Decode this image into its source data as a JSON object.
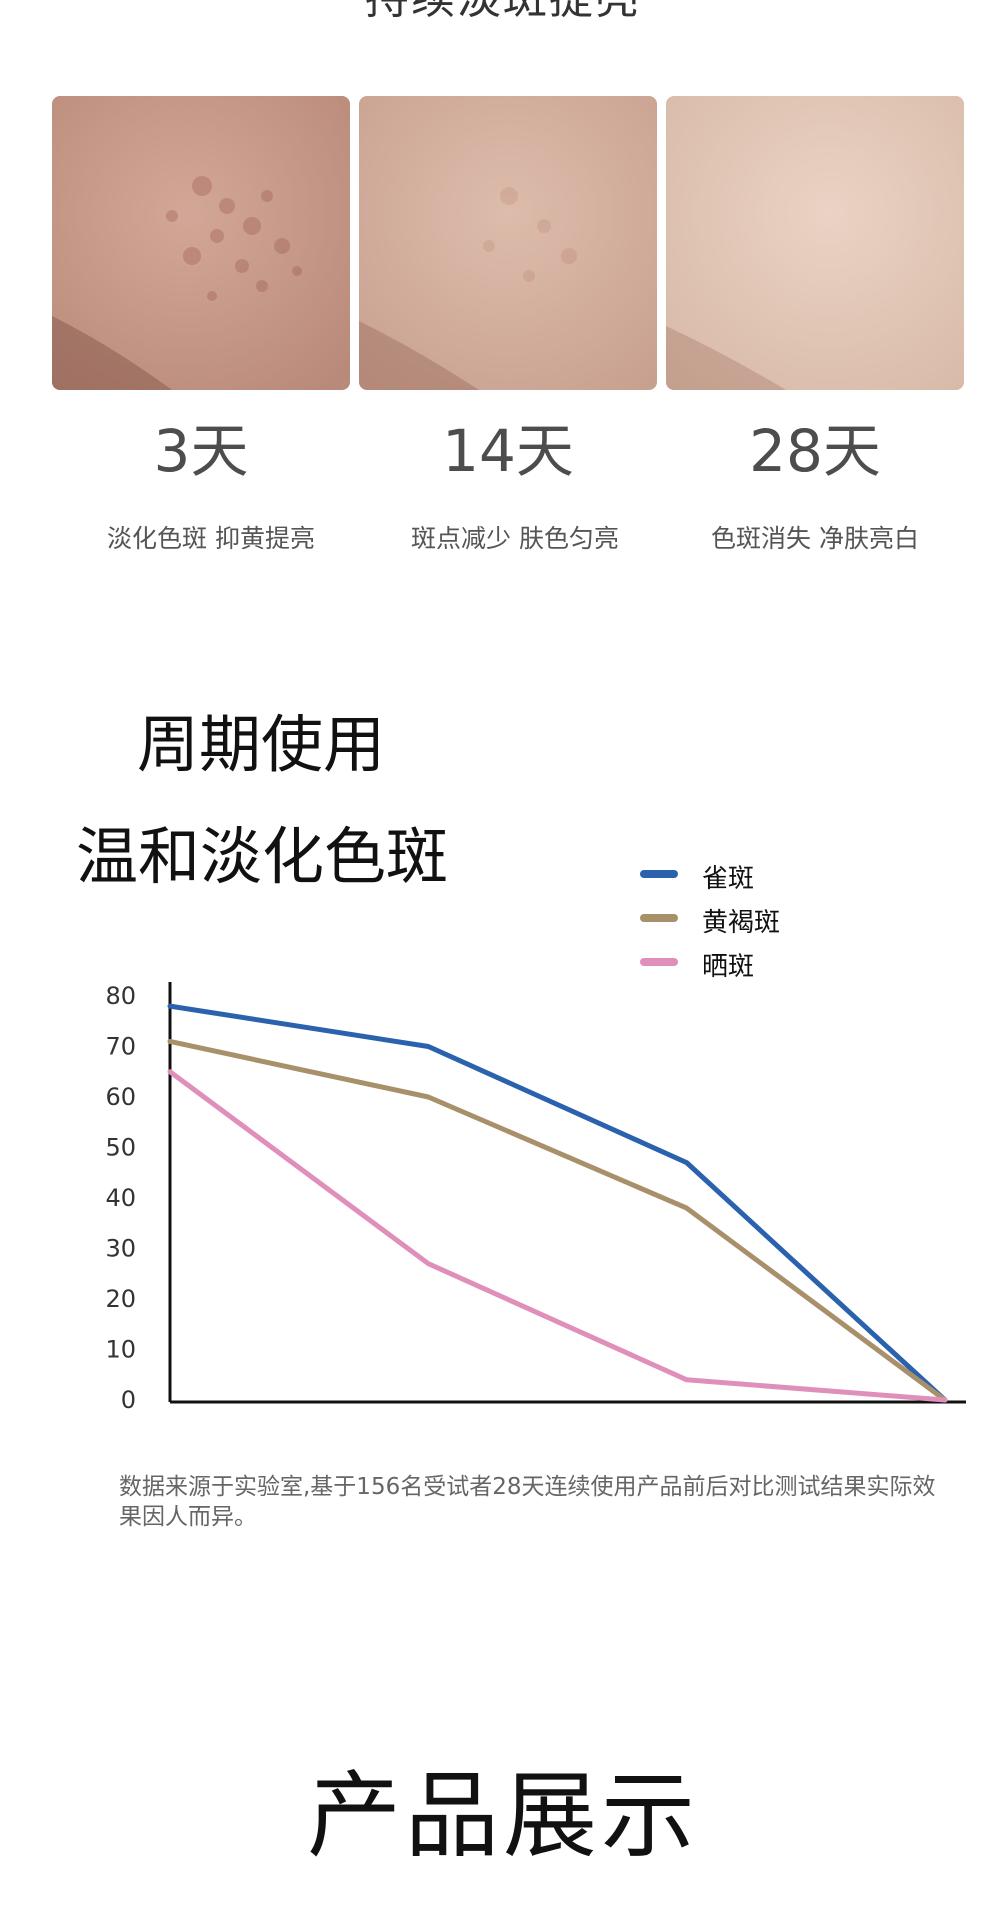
{
  "header": {
    "partial_heading": "持续淡斑提亮"
  },
  "stages": [
    {
      "day": "3天",
      "caption": "淡化色斑 抑黄提亮"
    },
    {
      "day": "14天",
      "caption": "斑点减少 肤色匀亮"
    },
    {
      "day": "28天",
      "caption": "色斑消失 净肤亮白"
    }
  ],
  "section": {
    "title_line1": "周期使用",
    "title_line2": "温和淡化色斑"
  },
  "chart_data": {
    "type": "line",
    "x": [
      0,
      1,
      2,
      3
    ],
    "yticks": [
      "80",
      "70",
      "60",
      "50",
      "40",
      "30",
      "20",
      "10",
      "0"
    ],
    "ylim": [
      0,
      80
    ],
    "series": [
      {
        "name": "雀斑",
        "color": "#2a62ad",
        "values": [
          78,
          70,
          47,
          0
        ]
      },
      {
        "name": "黄褐斑",
        "color": "#a8906a",
        "values": [
          71,
          60,
          38,
          0
        ]
      },
      {
        "name": "晒斑",
        "color": "#e08fba",
        "values": [
          65,
          27,
          4,
          0
        ]
      }
    ],
    "legend_position": "top-right",
    "grid": false
  },
  "footnote": "数据来源于实验室,基于156名受试者28天连续使用产品前后对比测试结果实际效果因人而异。",
  "product_heading": "产品展示",
  "colors": {
    "skin_day3": "#caa08f",
    "skin_day14": "#d6b3a1",
    "skin_day28": "#e2c6b4"
  }
}
